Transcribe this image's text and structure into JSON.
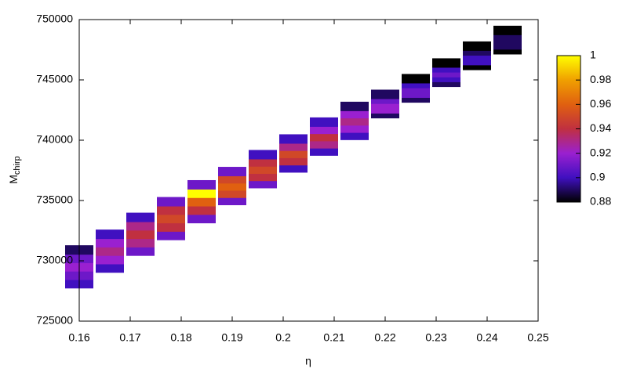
{
  "chart_data": {
    "type": "heatmap",
    "x_label": "η",
    "y_label": "M",
    "y_label_sub": "chirp",
    "xlim": [
      0.16,
      0.25
    ],
    "xticks": [
      0.16,
      0.17,
      0.18,
      0.19,
      0.2,
      0.21,
      0.22,
      0.23,
      0.24,
      0.25
    ],
    "ylim": [
      725000,
      750000
    ],
    "yticks": [
      725000,
      730000,
      735000,
      740000,
      745000,
      750000
    ],
    "zlim": [
      0.88,
      1
    ],
    "zticks": [
      0.88,
      0.9,
      0.92,
      0.94,
      0.96,
      0.98,
      1
    ],
    "colormap": [
      "#000000",
      "#4010c0",
      "#9a20d0",
      "#c03040",
      "#e06010",
      "#f0a000",
      "#ffff00"
    ],
    "x": [
      0.16,
      0.16,
      0.16,
      0.16,
      0.16,
      0.166,
      0.166,
      0.166,
      0.166,
      0.166,
      0.172,
      0.172,
      0.172,
      0.172,
      0.172,
      0.178,
      0.178,
      0.178,
      0.178,
      0.178,
      0.184,
      0.184,
      0.184,
      0.184,
      0.184,
      0.19,
      0.19,
      0.19,
      0.19,
      0.19,
      0.196,
      0.196,
      0.196,
      0.196,
      0.196,
      0.202,
      0.202,
      0.202,
      0.202,
      0.202,
      0.208,
      0.208,
      0.208,
      0.208,
      0.208,
      0.214,
      0.214,
      0.214,
      0.214,
      0.214,
      0.22,
      0.22,
      0.22,
      0.22,
      0.22,
      0.226,
      0.226,
      0.226,
      0.226,
      0.226,
      0.232,
      0.232,
      0.232,
      0.232,
      0.232,
      0.238,
      0.238,
      0.238,
      0.238,
      0.238,
      0.244,
      0.244,
      0.244,
      0.244,
      0.244
    ],
    "y": [
      728100,
      728800,
      729500,
      730200,
      730900,
      729400,
      730100,
      730800,
      731500,
      732200,
      730800,
      731500,
      732200,
      732900,
      733600,
      732100,
      732800,
      733500,
      734200,
      734900,
      733500,
      734200,
      734900,
      735600,
      736300,
      735000,
      735600,
      736200,
      736800,
      737400,
      736400,
      737000,
      737600,
      738200,
      738800,
      737700,
      738300,
      738900,
      739500,
      740100,
      739100,
      739700,
      740300,
      740900,
      741500,
      740400,
      741000,
      741600,
      742200,
      742800,
      742200,
      742600,
      743000,
      743400,
      743800,
      743500,
      743900,
      744300,
      744700,
      745100,
      744800,
      745200,
      745600,
      746000,
      746400,
      746200,
      746600,
      747000,
      747400,
      747800,
      747500,
      747900,
      748300,
      748700,
      749100
    ],
    "values": [
      0.9,
      0.91,
      0.92,
      0.91,
      0.89,
      0.9,
      0.92,
      0.93,
      0.92,
      0.9,
      0.91,
      0.93,
      0.94,
      0.93,
      0.9,
      0.91,
      0.94,
      0.95,
      0.94,
      0.91,
      0.91,
      0.94,
      0.96,
      1,
      0.91,
      0.91,
      0.95,
      0.96,
      0.95,
      0.91,
      0.91,
      0.94,
      0.95,
      0.94,
      0.9,
      0.9,
      0.94,
      0.95,
      0.93,
      0.9,
      0.9,
      0.93,
      0.94,
      0.92,
      0.9,
      0.9,
      0.92,
      0.93,
      0.92,
      0.89,
      0.89,
      0.92,
      0.92,
      0.91,
      0.89,
      0.89,
      0.91,
      0.91,
      0.9,
      0.88,
      0.89,
      0.9,
      0.91,
      0.9,
      0.88,
      0.88,
      0.9,
      0.9,
      0.89,
      0.88,
      0.88,
      0.89,
      0.89,
      0.89,
      0.88
    ]
  }
}
